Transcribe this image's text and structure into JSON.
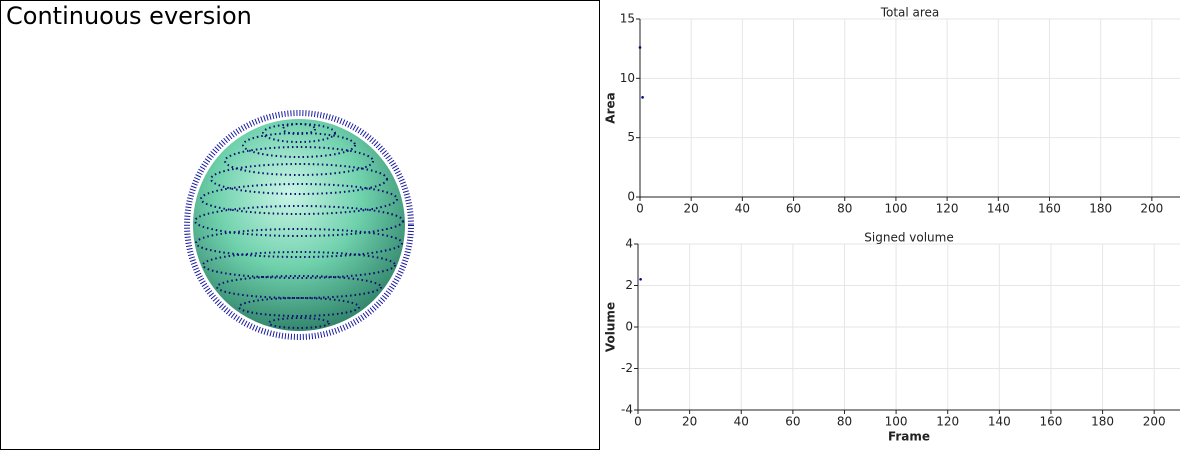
{
  "viewport": {
    "title": "Continuous eversion"
  },
  "chart_data": [
    {
      "type": "scatter",
      "title": "Total area",
      "ylabel": "Area",
      "x": [
        0,
        1
      ],
      "values": [
        12.6,
        8.4
      ],
      "color": "#00008b",
      "xlim": [
        0,
        211
      ],
      "xticks": [
        0,
        20,
        40,
        60,
        80,
        100,
        120,
        140,
        160,
        180,
        200
      ],
      "ylim": [
        0,
        15
      ],
      "yticks": [
        0,
        5,
        10,
        15
      ],
      "grid": true
    },
    {
      "type": "scatter",
      "title": "Signed volume",
      "ylabel": "Volume",
      "xlabel": "Frame",
      "x": [
        1
      ],
      "values": [
        2.3
      ],
      "color": "#00008b",
      "xlim": [
        0,
        210
      ],
      "xticks": [
        0,
        20,
        40,
        60,
        80,
        100,
        120,
        140,
        160,
        180,
        200
      ],
      "ylim": [
        -4,
        4
      ],
      "yticks": [
        -4,
        -2,
        0,
        2,
        4
      ],
      "grid": true
    }
  ]
}
